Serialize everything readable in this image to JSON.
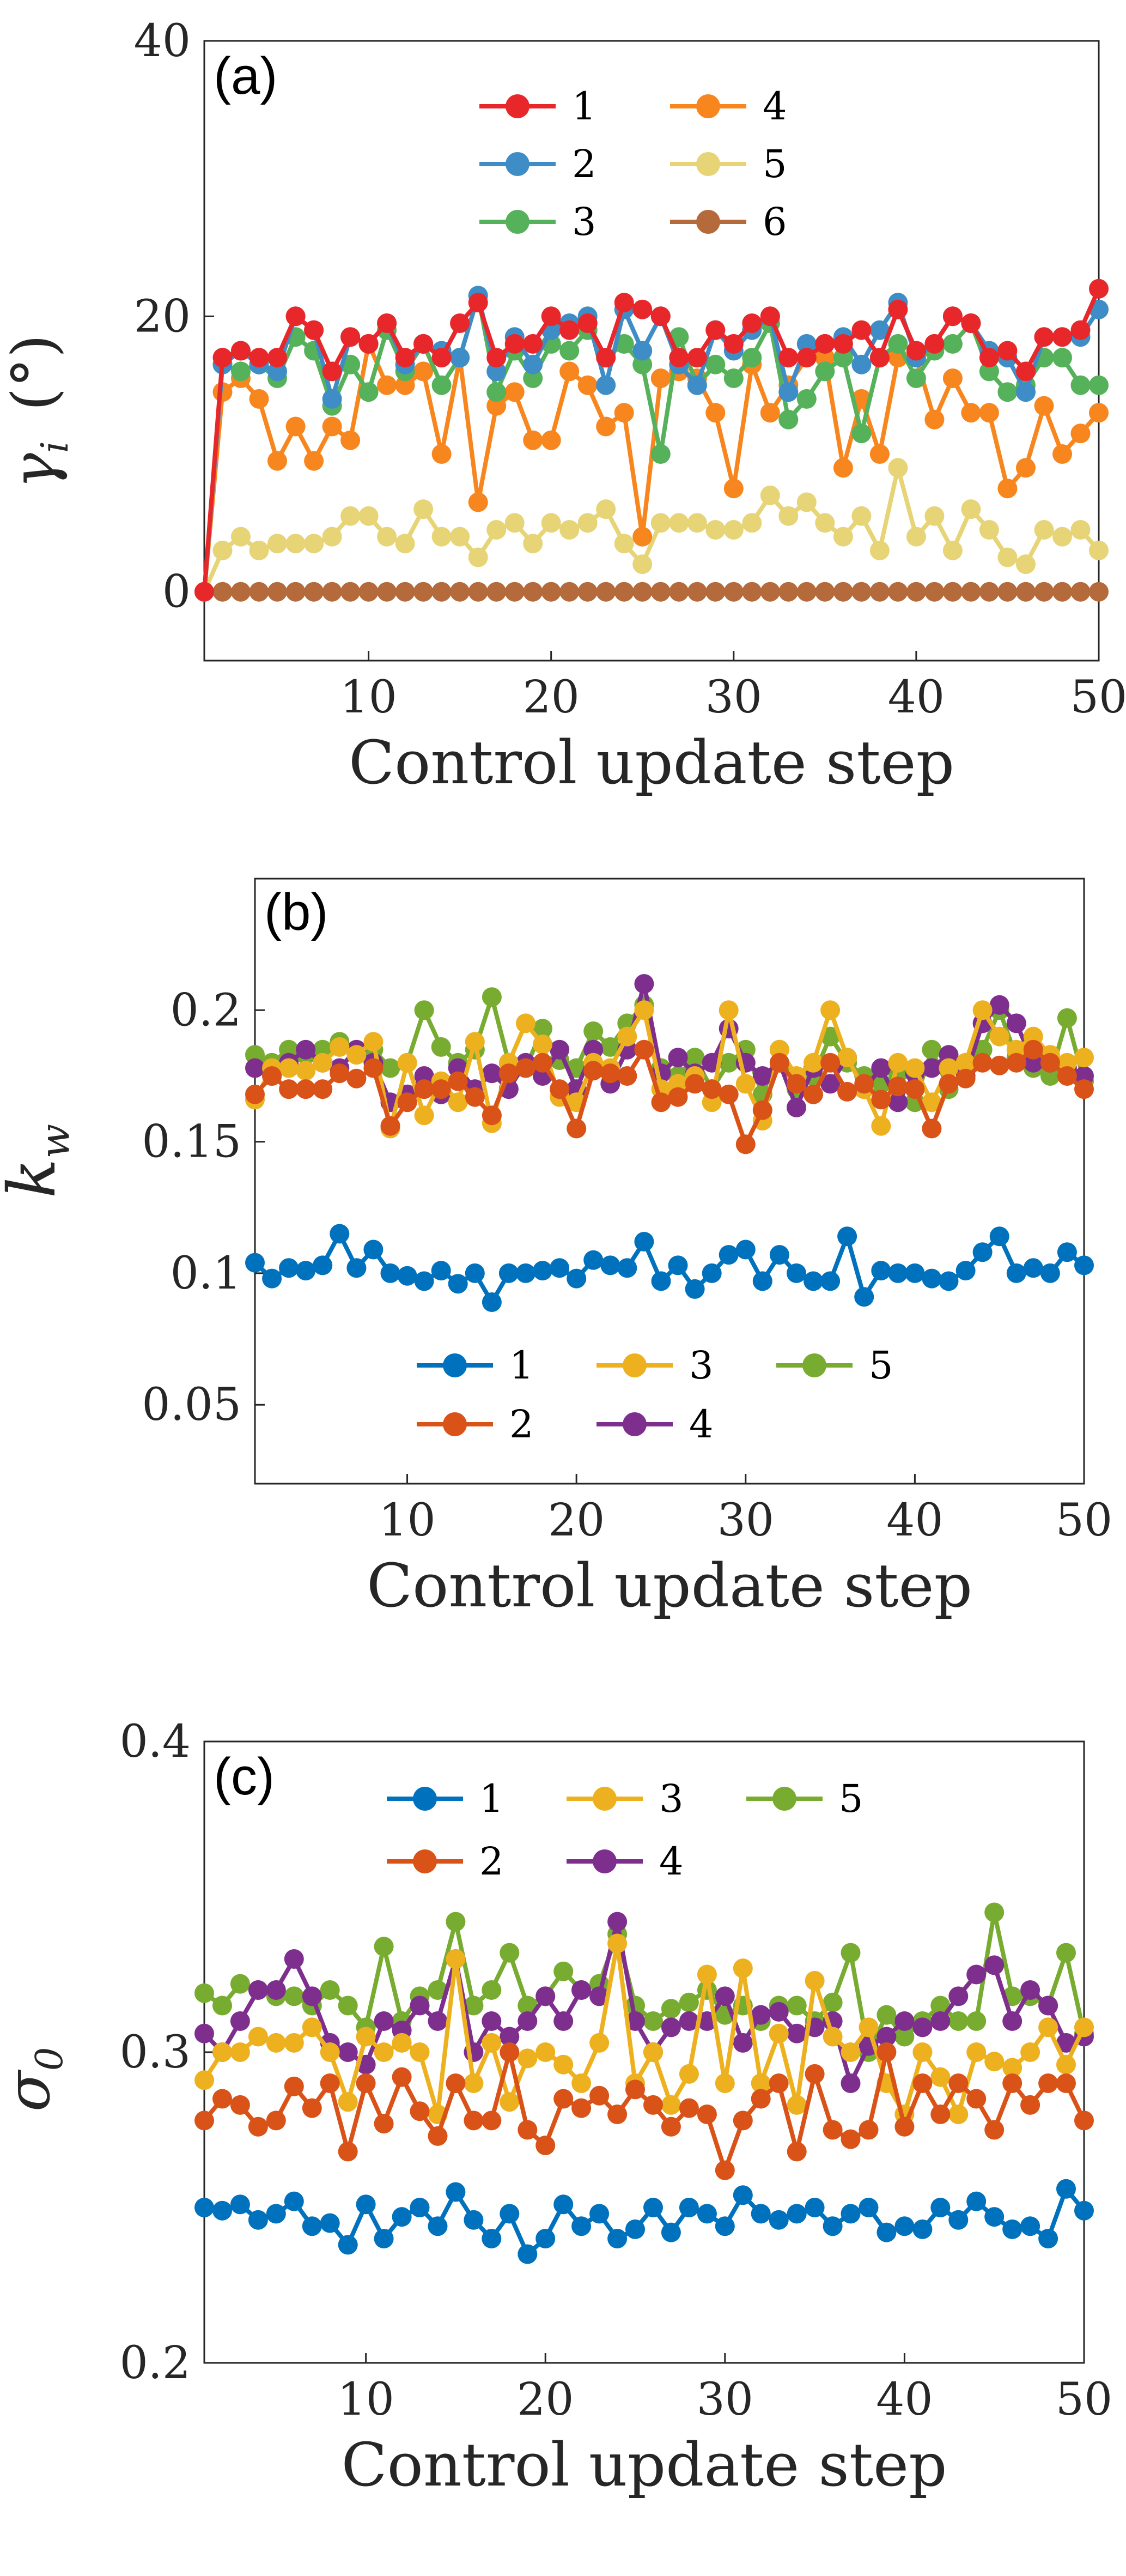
{
  "chart_data": [
    {
      "type": "line",
      "panel_label": "(a)",
      "xlabel": "Control update step",
      "ylabel": {
        "symbol": "γ",
        "subscript": "i",
        "unit": "(°)"
      },
      "xlim": [
        1,
        50
      ],
      "ylim": [
        -5,
        40
      ],
      "xticks": [
        10,
        20,
        30,
        40,
        50
      ],
      "yticks": [
        0,
        20,
        40
      ],
      "legend": {
        "placement": "top-center",
        "columns": 2
      },
      "series": [
        {
          "name": "1",
          "color": "#E8272B",
          "values": [
            0,
            17,
            17.5,
            17,
            17,
            20,
            19,
            16,
            18.5,
            18,
            19.5,
            17,
            18,
            17,
            19.5,
            21,
            17,
            18,
            18,
            20,
            19,
            19.5,
            17,
            21,
            20.5,
            20,
            17,
            17,
            19,
            18,
            19.5,
            20,
            17,
            17,
            18,
            18,
            19,
            17,
            20.5,
            17.5,
            18,
            20,
            19.5,
            17,
            17.5,
            16,
            18.5,
            18.5,
            19,
            22
          ]
        },
        {
          "name": "2",
          "color": "#3E8DC6",
          "values": [
            0,
            16.5,
            17.5,
            16.5,
            16,
            20,
            19,
            14,
            18.5,
            18,
            19.5,
            16.5,
            18,
            17.5,
            17,
            21.5,
            16,
            18.5,
            16.5,
            19,
            19.5,
            20,
            15,
            20.5,
            17.5,
            20,
            16.5,
            15,
            19,
            17.5,
            19,
            20,
            14.5,
            18,
            18,
            18.5,
            16.5,
            19,
            21,
            17,
            18,
            20,
            19.5,
            17.5,
            17,
            14.5,
            18.5,
            18.5,
            18.5,
            20.5
          ]
        },
        {
          "name": "3",
          "color": "#56B15B",
          "values": [
            0,
            16.5,
            16,
            16.5,
            15.5,
            18.5,
            17.5,
            13.5,
            16.5,
            14.5,
            19,
            16,
            18,
            15,
            17,
            21.5,
            14.5,
            17.5,
            15.5,
            18,
            17.5,
            19,
            17,
            18,
            16.5,
            10,
            18.5,
            15,
            16.5,
            15.5,
            17,
            19.5,
            12.5,
            14,
            16,
            17,
            11.5,
            17,
            18,
            15.5,
            17.5,
            18,
            19.5,
            16,
            14.5,
            15,
            17,
            17,
            15,
            15
          ]
        },
        {
          "name": "4",
          "color": "#F7861E",
          "values": [
            0,
            14.5,
            15.5,
            14,
            9.5,
            12,
            9.5,
            12,
            11,
            18,
            15,
            15,
            16,
            10,
            17,
            6.5,
            13.5,
            14.5,
            11,
            11,
            16,
            15,
            12,
            13,
            4,
            15.5,
            16,
            15.5,
            13,
            7.5,
            16.5,
            13,
            15,
            17,
            17,
            9,
            14,
            10,
            17,
            17,
            12.5,
            15.5,
            13,
            13,
            7.5,
            9,
            13.5,
            10,
            11.5,
            13
          ]
        },
        {
          "name": "5",
          "color": "#E6D477",
          "values": [
            0,
            3,
            4,
            3,
            3.5,
            3.5,
            3.5,
            4,
            5.5,
            5.5,
            4,
            3.5,
            6,
            4,
            4,
            2.5,
            4.5,
            5,
            3.5,
            5,
            4.5,
            5,
            6,
            3.5,
            2,
            5,
            5,
            5,
            4.5,
            4.5,
            5,
            7,
            5.5,
            6.5,
            5,
            4,
            5.5,
            3,
            9,
            4,
            5.5,
            3,
            6,
            4.5,
            2.5,
            2,
            4.5,
            4,
            4.5,
            3
          ]
        },
        {
          "name": "6",
          "color": "#B46A3A",
          "values": [
            0,
            0,
            0,
            0,
            0,
            0,
            0,
            0,
            0,
            0,
            0,
            0,
            0,
            0,
            0,
            0,
            0,
            0,
            0,
            0,
            0,
            0,
            0,
            0,
            0,
            0,
            0,
            0,
            0,
            0,
            0,
            0,
            0,
            0,
            0,
            0,
            0,
            0,
            0,
            0,
            0,
            0,
            0,
            0,
            0,
            0,
            0,
            0,
            0,
            0
          ]
        }
      ]
    },
    {
      "type": "line",
      "panel_label": "(b)",
      "xlabel": "Control update step",
      "ylabel": {
        "symbol": "k",
        "subscript": "w",
        "unit": ""
      },
      "xlim": [
        1,
        50
      ],
      "ylim": [
        0.02,
        0.25
      ],
      "xticks": [
        10,
        20,
        30,
        40,
        50
      ],
      "yticks": [
        0.05,
        0.1,
        0.15,
        0.2
      ],
      "ytick_labels": [
        "0.05",
        "0.1",
        "0.15",
        "0.2"
      ],
      "legend": {
        "placement": "bottom-center",
        "columns": 3
      },
      "series": [
        {
          "name": "1",
          "color": "#0072BD",
          "values": [
            0.104,
            0.098,
            0.102,
            0.101,
            0.103,
            0.115,
            0.102,
            0.109,
            0.1,
            0.099,
            0.097,
            0.101,
            0.096,
            0.1,
            0.089,
            0.1,
            0.1,
            0.101,
            0.102,
            0.098,
            0.105,
            0.103,
            0.102,
            0.112,
            0.097,
            0.103,
            0.094,
            0.1,
            0.107,
            0.109,
            0.097,
            0.107,
            0.1,
            0.097,
            0.097,
            0.114,
            0.091,
            0.101,
            0.1,
            0.1,
            0.098,
            0.097,
            0.101,
            0.108,
            0.114,
            0.1,
            0.102,
            0.1,
            0.108,
            0.103
          ]
        },
        {
          "name": "2",
          "color": "#D95319",
          "values": [
            0.168,
            0.175,
            0.17,
            0.17,
            0.17,
            0.176,
            0.174,
            0.178,
            0.156,
            0.165,
            0.17,
            0.17,
            0.173,
            0.167,
            0.16,
            0.176,
            0.178,
            0.18,
            0.17,
            0.155,
            0.177,
            0.176,
            0.175,
            0.185,
            0.165,
            0.167,
            0.172,
            0.17,
            0.168,
            0.149,
            0.162,
            0.18,
            0.172,
            0.168,
            0.18,
            0.169,
            0.172,
            0.166,
            0.171,
            0.17,
            0.155,
            0.172,
            0.174,
            0.18,
            0.179,
            0.18,
            0.185,
            0.18,
            0.175,
            0.17
          ]
        },
        {
          "name": "3",
          "color": "#EDB120",
          "values": [
            0.166,
            0.178,
            0.178,
            0.177,
            0.18,
            0.186,
            0.183,
            0.188,
            0.155,
            0.18,
            0.16,
            0.173,
            0.165,
            0.188,
            0.157,
            0.18,
            0.195,
            0.187,
            0.167,
            0.165,
            0.18,
            0.178,
            0.19,
            0.2,
            0.17,
            0.172,
            0.175,
            0.165,
            0.2,
            0.172,
            0.158,
            0.185,
            0.175,
            0.18,
            0.2,
            0.182,
            0.17,
            0.156,
            0.18,
            0.178,
            0.165,
            0.178,
            0.18,
            0.2,
            0.19,
            0.185,
            0.19,
            0.183,
            0.18,
            0.182
          ]
        },
        {
          "name": "4",
          "color": "#7E2F8E",
          "values": [
            0.178,
            0.175,
            0.18,
            0.185,
            0.18,
            0.178,
            0.185,
            0.18,
            0.165,
            0.168,
            0.175,
            0.168,
            0.178,
            0.17,
            0.176,
            0.17,
            0.18,
            0.175,
            0.185,
            0.17,
            0.185,
            0.172,
            0.185,
            0.21,
            0.176,
            0.182,
            0.176,
            0.18,
            0.193,
            0.18,
            0.175,
            0.18,
            0.163,
            0.178,
            0.172,
            0.182,
            0.17,
            0.178,
            0.165,
            0.176,
            0.178,
            0.183,
            0.175,
            0.195,
            0.202,
            0.195,
            0.18,
            0.18,
            0.178,
            0.175
          ]
        },
        {
          "name": "5",
          "color": "#77AC30",
          "values": [
            0.183,
            0.18,
            0.185,
            0.183,
            0.185,
            0.188,
            0.184,
            0.185,
            0.178,
            0.18,
            0.2,
            0.186,
            0.18,
            0.185,
            0.205,
            0.18,
            0.178,
            0.193,
            0.181,
            0.178,
            0.192,
            0.186,
            0.195,
            0.202,
            0.178,
            0.175,
            0.182,
            0.17,
            0.18,
            0.185,
            0.168,
            0.185,
            0.17,
            0.175,
            0.19,
            0.18,
            0.175,
            0.172,
            0.176,
            0.165,
            0.185,
            0.17,
            0.178,
            0.185,
            0.2,
            0.182,
            0.178,
            0.175,
            0.197,
            0.173
          ]
        }
      ]
    },
    {
      "type": "line",
      "panel_label": "(c)",
      "xlabel": "Control update step",
      "ylabel": {
        "symbol": "σ",
        "subscript": "0",
        "unit": ""
      },
      "xlim": [
        1,
        50
      ],
      "ylim": [
        0.2,
        0.4
      ],
      "xticks": [
        10,
        20,
        30,
        40,
        50
      ],
      "yticks": [
        0.2,
        0.3,
        0.4
      ],
      "ytick_labels": [
        "0.2",
        "0.3",
        "0.4"
      ],
      "legend": {
        "placement": "top-center",
        "columns": 3
      },
      "series": [
        {
          "name": "1",
          "color": "#0072BD",
          "values": [
            0.25,
            0.249,
            0.251,
            0.246,
            0.248,
            0.252,
            0.244,
            0.245,
            0.238,
            0.251,
            0.24,
            0.247,
            0.25,
            0.244,
            0.255,
            0.246,
            0.24,
            0.248,
            0.235,
            0.24,
            0.251,
            0.244,
            0.248,
            0.24,
            0.243,
            0.25,
            0.242,
            0.25,
            0.248,
            0.244,
            0.254,
            0.248,
            0.246,
            0.248,
            0.25,
            0.244,
            0.248,
            0.25,
            0.242,
            0.244,
            0.243,
            0.25,
            0.246,
            0.252,
            0.247,
            0.243,
            0.244,
            0.24,
            0.256,
            0.249
          ]
        },
        {
          "name": "2",
          "color": "#D95319",
          "values": [
            0.278,
            0.285,
            0.283,
            0.276,
            0.278,
            0.289,
            0.282,
            0.29,
            0.268,
            0.29,
            0.277,
            0.292,
            0.281,
            0.273,
            0.29,
            0.278,
            0.278,
            0.3,
            0.275,
            0.27,
            0.285,
            0.282,
            0.286,
            0.28,
            0.288,
            0.283,
            0.276,
            0.282,
            0.28,
            0.262,
            0.278,
            0.285,
            0.29,
            0.268,
            0.293,
            0.275,
            0.272,
            0.275,
            0.3,
            0.276,
            0.29,
            0.28,
            0.29,
            0.285,
            0.275,
            0.29,
            0.283,
            0.29,
            0.29,
            0.278
          ]
        },
        {
          "name": "3",
          "color": "#EDB120",
          "values": [
            0.291,
            0.3,
            0.3,
            0.305,
            0.303,
            0.303,
            0.308,
            0.3,
            0.284,
            0.305,
            0.3,
            0.303,
            0.3,
            0.28,
            0.33,
            0.29,
            0.303,
            0.284,
            0.298,
            0.3,
            0.296,
            0.29,
            0.303,
            0.335,
            0.29,
            0.3,
            0.283,
            0.293,
            0.325,
            0.29,
            0.327,
            0.29,
            0.306,
            0.283,
            0.323,
            0.305,
            0.3,
            0.308,
            0.29,
            0.28,
            0.3,
            0.292,
            0.28,
            0.3,
            0.297,
            0.295,
            0.3,
            0.308,
            0.296,
            0.308
          ]
        },
        {
          "name": "4",
          "color": "#7E2F8E",
          "values": [
            0.306,
            0.3,
            0.31,
            0.32,
            0.32,
            0.33,
            0.318,
            0.303,
            0.3,
            0.296,
            0.31,
            0.307,
            0.315,
            0.31,
            0.33,
            0.3,
            0.31,
            0.305,
            0.31,
            0.318,
            0.31,
            0.32,
            0.318,
            0.342,
            0.31,
            0.3,
            0.308,
            0.31,
            0.31,
            0.318,
            0.303,
            0.312,
            0.313,
            0.306,
            0.308,
            0.31,
            0.29,
            0.302,
            0.305,
            0.31,
            0.308,
            0.31,
            0.318,
            0.325,
            0.328,
            0.31,
            0.32,
            0.315,
            0.303,
            0.305
          ]
        },
        {
          "name": "5",
          "color": "#77AC30",
          "values": [
            0.319,
            0.315,
            0.322,
            0.32,
            0.318,
            0.318,
            0.315,
            0.32,
            0.315,
            0.308,
            0.334,
            0.31,
            0.318,
            0.32,
            0.342,
            0.315,
            0.32,
            0.332,
            0.315,
            0.318,
            0.326,
            0.32,
            0.322,
            0.338,
            0.315,
            0.31,
            0.314,
            0.316,
            0.32,
            0.312,
            0.315,
            0.31,
            0.315,
            0.315,
            0.31,
            0.316,
            0.332,
            0.3,
            0.312,
            0.305,
            0.31,
            0.315,
            0.31,
            0.31,
            0.345,
            0.318,
            0.318,
            0.315,
            0.332,
            0.306
          ]
        }
      ]
    }
  ]
}
